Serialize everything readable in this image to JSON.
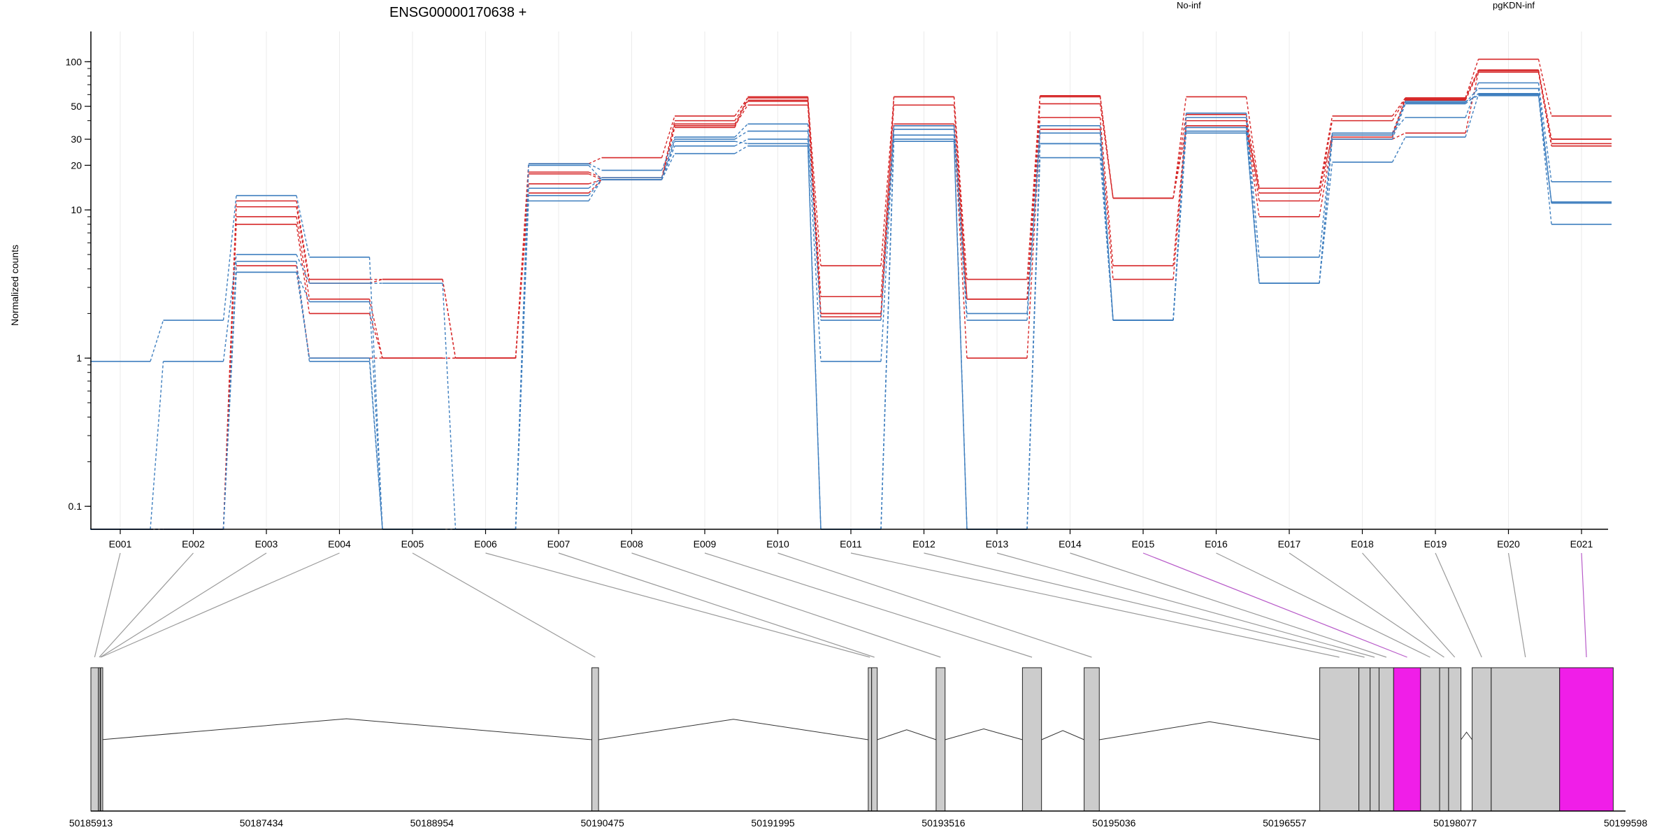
{
  "chart_data": {
    "type": "line",
    "title": "ENSG00000170638 +",
    "ylabel": "Normalized counts",
    "xlabel": "",
    "y_scale": "log",
    "ylim": [
      0.07,
      160
    ],
    "yticks": [
      0.1,
      1,
      10,
      20,
      30,
      50,
      100
    ],
    "grid": "vertical",
    "legend": [
      {
        "label": "No-inf",
        "color": "#d62728"
      },
      {
        "label": "pgKDN-inf",
        "color": "#3f7fbf"
      }
    ],
    "categories": [
      "E001",
      "E002",
      "E003",
      "E004",
      "E005",
      "E006",
      "E007",
      "E008",
      "E009",
      "E010",
      "E011",
      "E012",
      "E013",
      "E014",
      "E015",
      "E016",
      "E017",
      "E018",
      "E019",
      "E020",
      "E021"
    ],
    "highlighted_exons": [
      "E015",
      "E021"
    ],
    "series": [
      {
        "group": "No-inf",
        "color": "#d62728",
        "values": [
          0.07,
          0.07,
          11.5,
          3.4,
          3.4,
          1.0,
          20.5,
          22.5,
          43,
          57,
          4.2,
          58,
          3.4,
          59,
          12,
          58,
          14,
          43,
          57,
          104,
          43
        ]
      },
      {
        "group": "No-inf",
        "color": "#d62728",
        "values": [
          0.07,
          0.07,
          10.5,
          3.2,
          3.4,
          1.0,
          18,
          16.5,
          40,
          55,
          2.6,
          51,
          2.5,
          52,
          12,
          44,
          13,
          40,
          56,
          87,
          30
        ]
      },
      {
        "group": "No-inf",
        "color": "#d62728",
        "values": [
          0.07,
          0.07,
          9,
          2.5,
          1.0,
          1.0,
          17.5,
          16,
          38,
          54,
          2.0,
          38,
          2.5,
          42,
          4.2,
          40,
          11.5,
          33,
          55,
          85,
          28
        ]
      },
      {
        "group": "No-inf",
        "color": "#d62728",
        "values": [
          0.07,
          0.07,
          8,
          2.0,
          1.0,
          1.0,
          15,
          16,
          37,
          51,
          1.9,
          37,
          1.0,
          35,
          3.4,
          37,
          9,
          30,
          33,
          85,
          27
        ]
      },
      {
        "group": "No-inf",
        "color": "#d62728",
        "values": [
          0.07,
          0.07,
          4.2,
          1.0,
          1.0,
          1.0,
          13,
          16,
          36,
          58,
          2.0,
          58,
          2.5,
          58,
          12,
          36,
          14,
          31,
          57,
          88,
          30
        ]
      },
      {
        "group": "pgKDN-inf",
        "color": "#3f7fbf",
        "values": [
          0.95,
          1.8,
          12.5,
          4.8,
          0.07,
          0.07,
          20.5,
          18.5,
          31,
          38,
          1.8,
          37,
          2.0,
          37,
          1.8,
          45,
          4.8,
          33,
          42,
          72,
          15.5
        ]
      },
      {
        "group": "pgKDN-inf",
        "color": "#3f7fbf",
        "values": [
          0.07,
          0.95,
          5,
          3.2,
          3.2,
          0.07,
          14,
          16.5,
          30,
          34,
          0.95,
          35,
          1.8,
          33,
          1.8,
          42,
          3.2,
          32,
          53,
          66,
          11.3
        ]
      },
      {
        "group": "pgKDN-inf",
        "color": "#3f7fbf",
        "values": [
          0.07,
          0.07,
          3.8,
          2.4,
          0.07,
          0.07,
          12.5,
          16,
          27,
          30,
          0.07,
          32,
          0.07,
          28,
          1.8,
          36,
          3.2,
          30,
          52,
          61,
          11.1
        ]
      },
      {
        "group": "pgKDN-inf",
        "color": "#3f7fbf",
        "values": [
          0.07,
          0.07,
          3.8,
          1.0,
          0.07,
          0.07,
          11.5,
          16,
          24,
          27,
          0.07,
          29,
          0.07,
          22.5,
          1.8,
          34,
          3.2,
          21,
          31,
          60,
          8
        ]
      },
      {
        "group": "pgKDN-inf",
        "color": "#3f7fbf",
        "values": [
          0.07,
          0.07,
          4.5,
          0.95,
          0.07,
          0.07,
          20,
          16,
          29,
          28,
          0.07,
          30,
          0.07,
          28,
          1.8,
          33,
          3.2,
          32,
          54,
          59,
          11.3
        ]
      }
    ]
  },
  "gene_model": {
    "coordinate_labels": [
      "50185913",
      "50187434",
      "50188954",
      "50190475",
      "50191995",
      "50193516",
      "50195036",
      "50196557",
      "50198077",
      "50199598"
    ],
    "exons": [
      {
        "id": "E001",
        "start": 50185913,
        "end": 50185980
      },
      {
        "id": "E002",
        "start": 50185980,
        "end": 50185995
      },
      {
        "id": "E003",
        "start": 50185995,
        "end": 50186000
      },
      {
        "id": "E004",
        "start": 50186000,
        "end": 50186004
      },
      {
        "id": "E005",
        "start": 50190380,
        "end": 50190440
      },
      {
        "id": "E006",
        "start": 50192845,
        "end": 50192875
      },
      {
        "id": "E007",
        "start": 50192875,
        "end": 50192925
      },
      {
        "id": "E008",
        "start": 50193450,
        "end": 50193530
      },
      {
        "id": "E009",
        "start": 50194220,
        "end": 50194390
      },
      {
        "id": "E010",
        "start": 50194770,
        "end": 50194905
      },
      {
        "id": "E011",
        "start": 50196871,
        "end": 50197220
      },
      {
        "id": "E012",
        "start": 50197220,
        "end": 50197320
      },
      {
        "id": "E013",
        "start": 50197320,
        "end": 50197400
      },
      {
        "id": "E014",
        "start": 50197400,
        "end": 50197530
      },
      {
        "id": "E015",
        "start": 50197530,
        "end": 50197770
      },
      {
        "id": "E016",
        "start": 50197770,
        "end": 50197940
      },
      {
        "id": "E017",
        "start": 50197940,
        "end": 50198020
      },
      {
        "id": "E018",
        "start": 50198020,
        "end": 50198130
      },
      {
        "id": "E019",
        "start": 50198230,
        "end": 50198400
      },
      {
        "id": "E020",
        "start": 50198400,
        "end": 50199010
      },
      {
        "id": "E021",
        "start": 50199010,
        "end": 50199488
      }
    ]
  }
}
